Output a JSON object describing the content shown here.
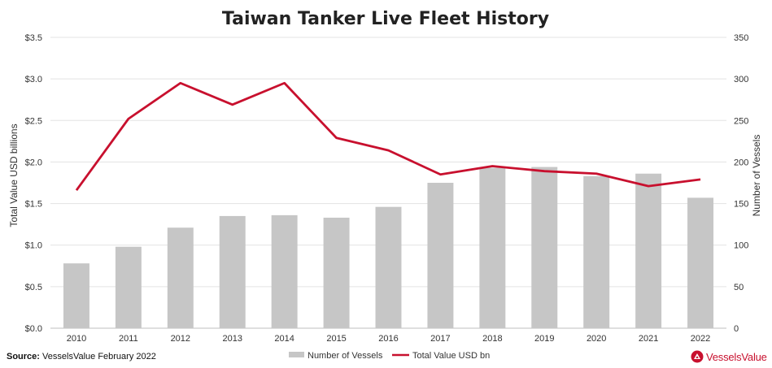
{
  "source": {
    "label": "Source:",
    "text": "VesselsValue February 2022"
  },
  "brand": {
    "name": "VesselsValue",
    "color": "#c8102e"
  },
  "chart_data": {
    "type": "bar+line",
    "title": "Taiwan Tanker Live Fleet History",
    "categories": [
      "2010",
      "2011",
      "2012",
      "2013",
      "2014",
      "2015",
      "2016",
      "2017",
      "2018",
      "2019",
      "2020",
      "2021",
      "2022"
    ],
    "series": [
      {
        "name": "Number of Vessels",
        "type": "bar",
        "axis": "right",
        "color": "#c6c6c6",
        "values": [
          78,
          98,
          121,
          135,
          136,
          133,
          146,
          175,
          193,
          194,
          183,
          186,
          157
        ]
      },
      {
        "name": "Total Value USD bn",
        "type": "line",
        "axis": "left",
        "color": "#c8102e",
        "values": [
          1.66,
          2.52,
          2.95,
          2.69,
          2.95,
          2.29,
          2.14,
          1.85,
          1.95,
          1.89,
          1.86,
          1.71,
          1.79
        ]
      }
    ],
    "y_left": {
      "label": "Total Value USD billions",
      "min": 0,
      "max": 3.5,
      "step": 0.5,
      "ticks": [
        "$0.0",
        "$0.5",
        "$1.0",
        "$1.5",
        "$2.0",
        "$2.5",
        "$3.0",
        "$3.5"
      ]
    },
    "y_right": {
      "label": "Number of Vessels",
      "min": 0,
      "max": 350,
      "step": 50,
      "ticks": [
        "0",
        "50",
        "100",
        "150",
        "200",
        "250",
        "300",
        "350"
      ]
    },
    "grid": true,
    "legend": "bottom-center"
  }
}
